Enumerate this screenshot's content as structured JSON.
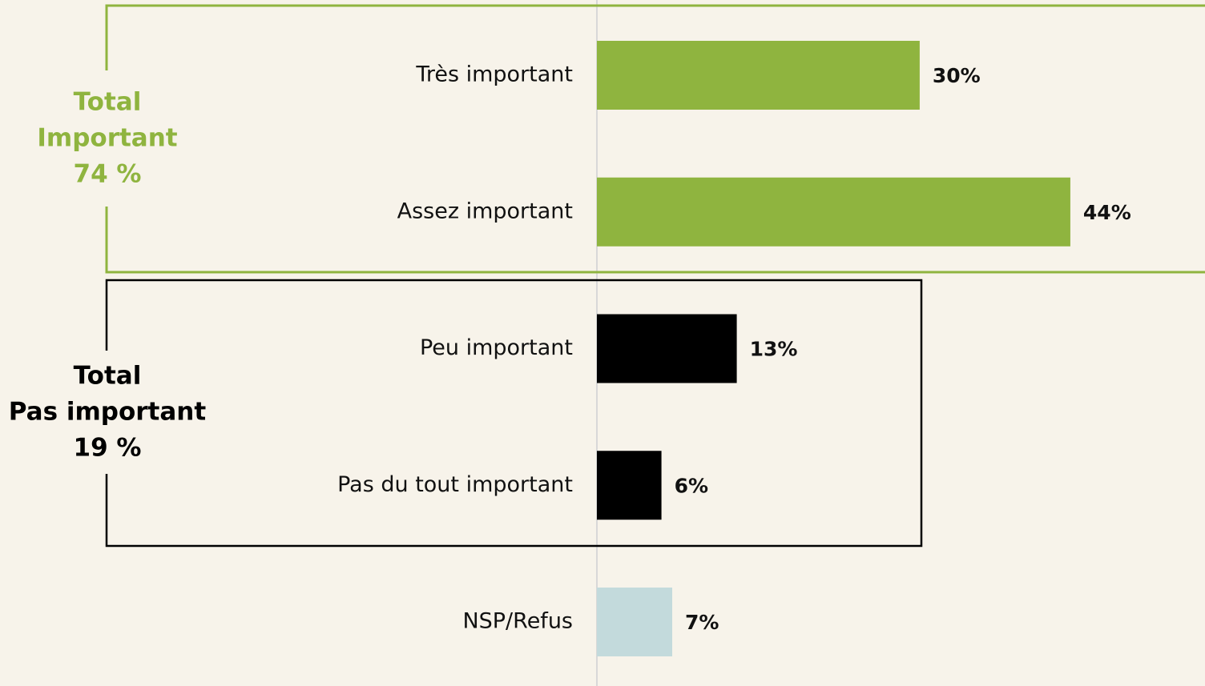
{
  "chart_data": {
    "type": "hbar",
    "categories": [
      "Très important",
      "Assez important",
      "Peu important",
      "Pas du tout important",
      "NSP/Refus"
    ],
    "values": [
      30,
      44,
      13,
      6,
      7
    ],
    "value_labels": [
      "30%",
      "44%",
      "13%",
      "6%",
      "7%"
    ],
    "colors": [
      "#8fb43f",
      "#8fb43f",
      "#000000",
      "#000000",
      "#c3dadc"
    ],
    "annotations": [
      {
        "lines": [
          "Total",
          "Important",
          "74 %"
        ],
        "color": "#8fb43f"
      },
      {
        "lines": [
          "Total",
          "Pas important",
          "19 %"
        ],
        "color": "#000000"
      }
    ]
  }
}
